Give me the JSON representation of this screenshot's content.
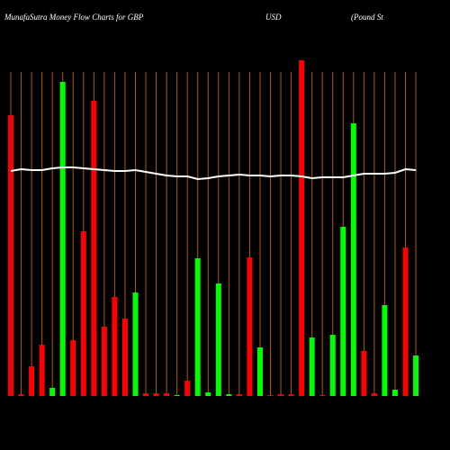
{
  "chart_data": {
    "type": "bar",
    "title": [
      "MunafaSutra  Money Flow  Charts for GBP",
      "USD",
      "(Pound St"
    ],
    "categories": [
      null,
      null,
      null,
      null,
      null,
      null,
      null,
      null,
      null,
      null,
      null,
      null,
      null,
      null,
      null,
      null,
      null,
      null,
      null,
      null,
      null,
      null,
      null,
      null,
      null,
      null,
      null,
      null,
      null,
      null,
      null,
      null,
      null,
      null,
      null,
      null,
      null,
      null,
      null,
      null
    ],
    "values": [
      312,
      2,
      33,
      57,
      9,
      349,
      62,
      183,
      328,
      77,
      110,
      86,
      115,
      3,
      3,
      3,
      1,
      17,
      153,
      4,
      125,
      2,
      2,
      154,
      54,
      1,
      2,
      2,
      373,
      65,
      1,
      68,
      188,
      303,
      50,
      3,
      101,
      7,
      165,
      45
    ],
    "colors": [
      "#ff0000",
      "#ff0000",
      "#ff0000",
      "#ff0000",
      "#00ff00",
      "#00ff00",
      "#ff0000",
      "#ff0000",
      "#ff0000",
      "#ff0000",
      "#ff0000",
      "#ff0000",
      "#00ff00",
      "#ff0000",
      "#ff0000",
      "#ff0000",
      "#00ff00",
      "#ff0000",
      "#00ff00",
      "#00ff00",
      "#00ff00",
      "#00ff00",
      "#ff0000",
      "#ff0000",
      "#00ff00",
      "#ff0000",
      "#ff0000",
      "#ff0000",
      "#ff0000",
      "#00ff00",
      "#ff0000",
      "#00ff00",
      "#00ff00",
      "#00ff00",
      "#ff0000",
      "#ff0000",
      "#00ff00",
      "#00ff00",
      "#ff0000",
      "#00ff00"
    ],
    "line": {
      "color": "#ffffff",
      "values": [
        250,
        252,
        251,
        251,
        253,
        254,
        254,
        253,
        252,
        251,
        250,
        250,
        251,
        249,
        247,
        245,
        244,
        244,
        241,
        242,
        244,
        245,
        246,
        245,
        245,
        244,
        245,
        245,
        244,
        242,
        243,
        243,
        243,
        245,
        247,
        247,
        247,
        248,
        252,
        251
      ]
    },
    "ylim": [
      0,
      380
    ],
    "grid": true,
    "grid_color": "#b35a00"
  }
}
